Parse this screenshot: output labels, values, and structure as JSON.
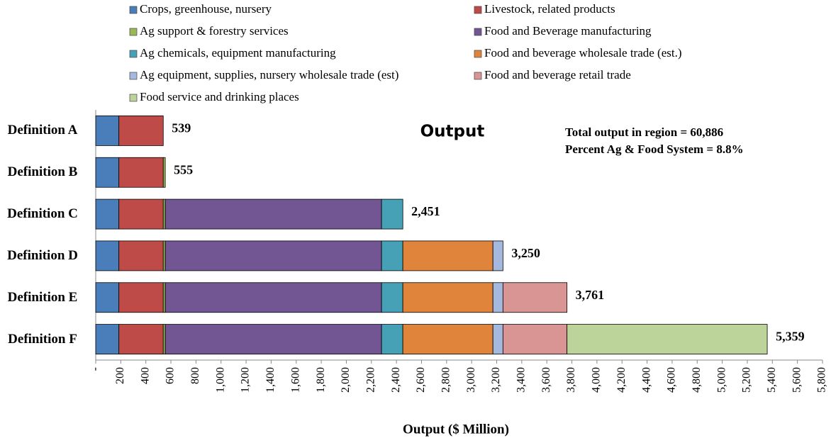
{
  "chart_data": {
    "type": "stacked-bar-horizontal",
    "title": "Output",
    "annotations": [
      "Total output in region = 60,886",
      "Percent Ag & Food System = 8.8%"
    ],
    "x_label": "Output ($ Million)",
    "categories": [
      "Definition A",
      "Definition B",
      "Definition C",
      "Definition D",
      "Definition E",
      "Definition F"
    ],
    "series": [
      {
        "name": "Crops, greenhouse, nursery",
        "color": "#4a7ebb",
        "values": [
          185,
          185,
          185,
          185,
          185,
          185
        ]
      },
      {
        "name": "Livestock, related products",
        "color": "#be4b48",
        "values": [
          354,
          354,
          354,
          354,
          354,
          354
        ]
      },
      {
        "name": "Ag support & forestry services",
        "color": "#98b954",
        "values": [
          null,
          16,
          16,
          16,
          16,
          16
        ]
      },
      {
        "name": "Food and Beverage manufacturing",
        "color": "#715693",
        "values": [
          null,
          null,
          1726,
          1726,
          1726,
          1726
        ]
      },
      {
        "name": "Ag chemicals, equipment manufacturing",
        "color": "#46a0b6",
        "values": [
          null,
          null,
          170,
          170,
          170,
          170
        ]
      },
      {
        "name": "Food and beverage wholesale trade (est.)",
        "color": "#e0843c",
        "values": [
          null,
          null,
          null,
          719,
          719,
          719
        ]
      },
      {
        "name": "Ag equipment, supplies, nursery wholesale trade (est)",
        "color": "#a5b8de",
        "values": [
          null,
          null,
          null,
          80,
          80,
          80
        ]
      },
      {
        "name": "Food and beverage retail trade",
        "color": "#d99594",
        "values": [
          null,
          null,
          null,
          null,
          511,
          511
        ]
      },
      {
        "name": "Food service and drinking places",
        "color": "#bcd39a",
        "values": [
          null,
          null,
          null,
          null,
          null,
          1598
        ]
      }
    ],
    "totals": [
      539,
      555,
      2451,
      3250,
      3761,
      5359
    ],
    "total_labels": [
      "539",
      "555",
      "2,451",
      "3,250",
      "3,761",
      "5,359"
    ],
    "xlim": [
      0,
      5800
    ],
    "xticks": [
      {
        "value": 0,
        "label": "-"
      },
      200,
      400,
      600,
      800,
      {
        "value": 1000,
        "label": "1,000"
      },
      {
        "value": 1200,
        "label": "1,200"
      },
      {
        "value": 1400,
        "label": "1,400"
      },
      {
        "value": 1600,
        "label": "1,600"
      },
      {
        "value": 1800,
        "label": "1,800"
      },
      {
        "value": 2000,
        "label": "2,000"
      },
      {
        "value": 2200,
        "label": "2,200"
      },
      {
        "value": 2400,
        "label": "2,400"
      },
      {
        "value": 2600,
        "label": "2,600"
      },
      {
        "value": 2800,
        "label": "2,800"
      },
      {
        "value": 3000,
        "label": "3,000"
      },
      {
        "value": 3200,
        "label": "3,200"
      },
      {
        "value": 3400,
        "label": "3,400"
      },
      {
        "value": 3600,
        "label": "3,600"
      },
      {
        "value": 3800,
        "label": "3,800"
      },
      {
        "value": 4000,
        "label": "4,000"
      },
      {
        "value": 4200,
        "label": "4,200"
      },
      {
        "value": 4400,
        "label": "4,400"
      },
      {
        "value": 4600,
        "label": "4,600"
      },
      {
        "value": 4800,
        "label": "4,800"
      },
      {
        "value": 5000,
        "label": "5,000"
      },
      {
        "value": 5200,
        "label": "5,200"
      },
      {
        "value": 5400,
        "label": "5,400"
      },
      {
        "value": 5600,
        "label": "5,600"
      },
      {
        "value": 5800,
        "label": "5,800"
      }
    ]
  }
}
